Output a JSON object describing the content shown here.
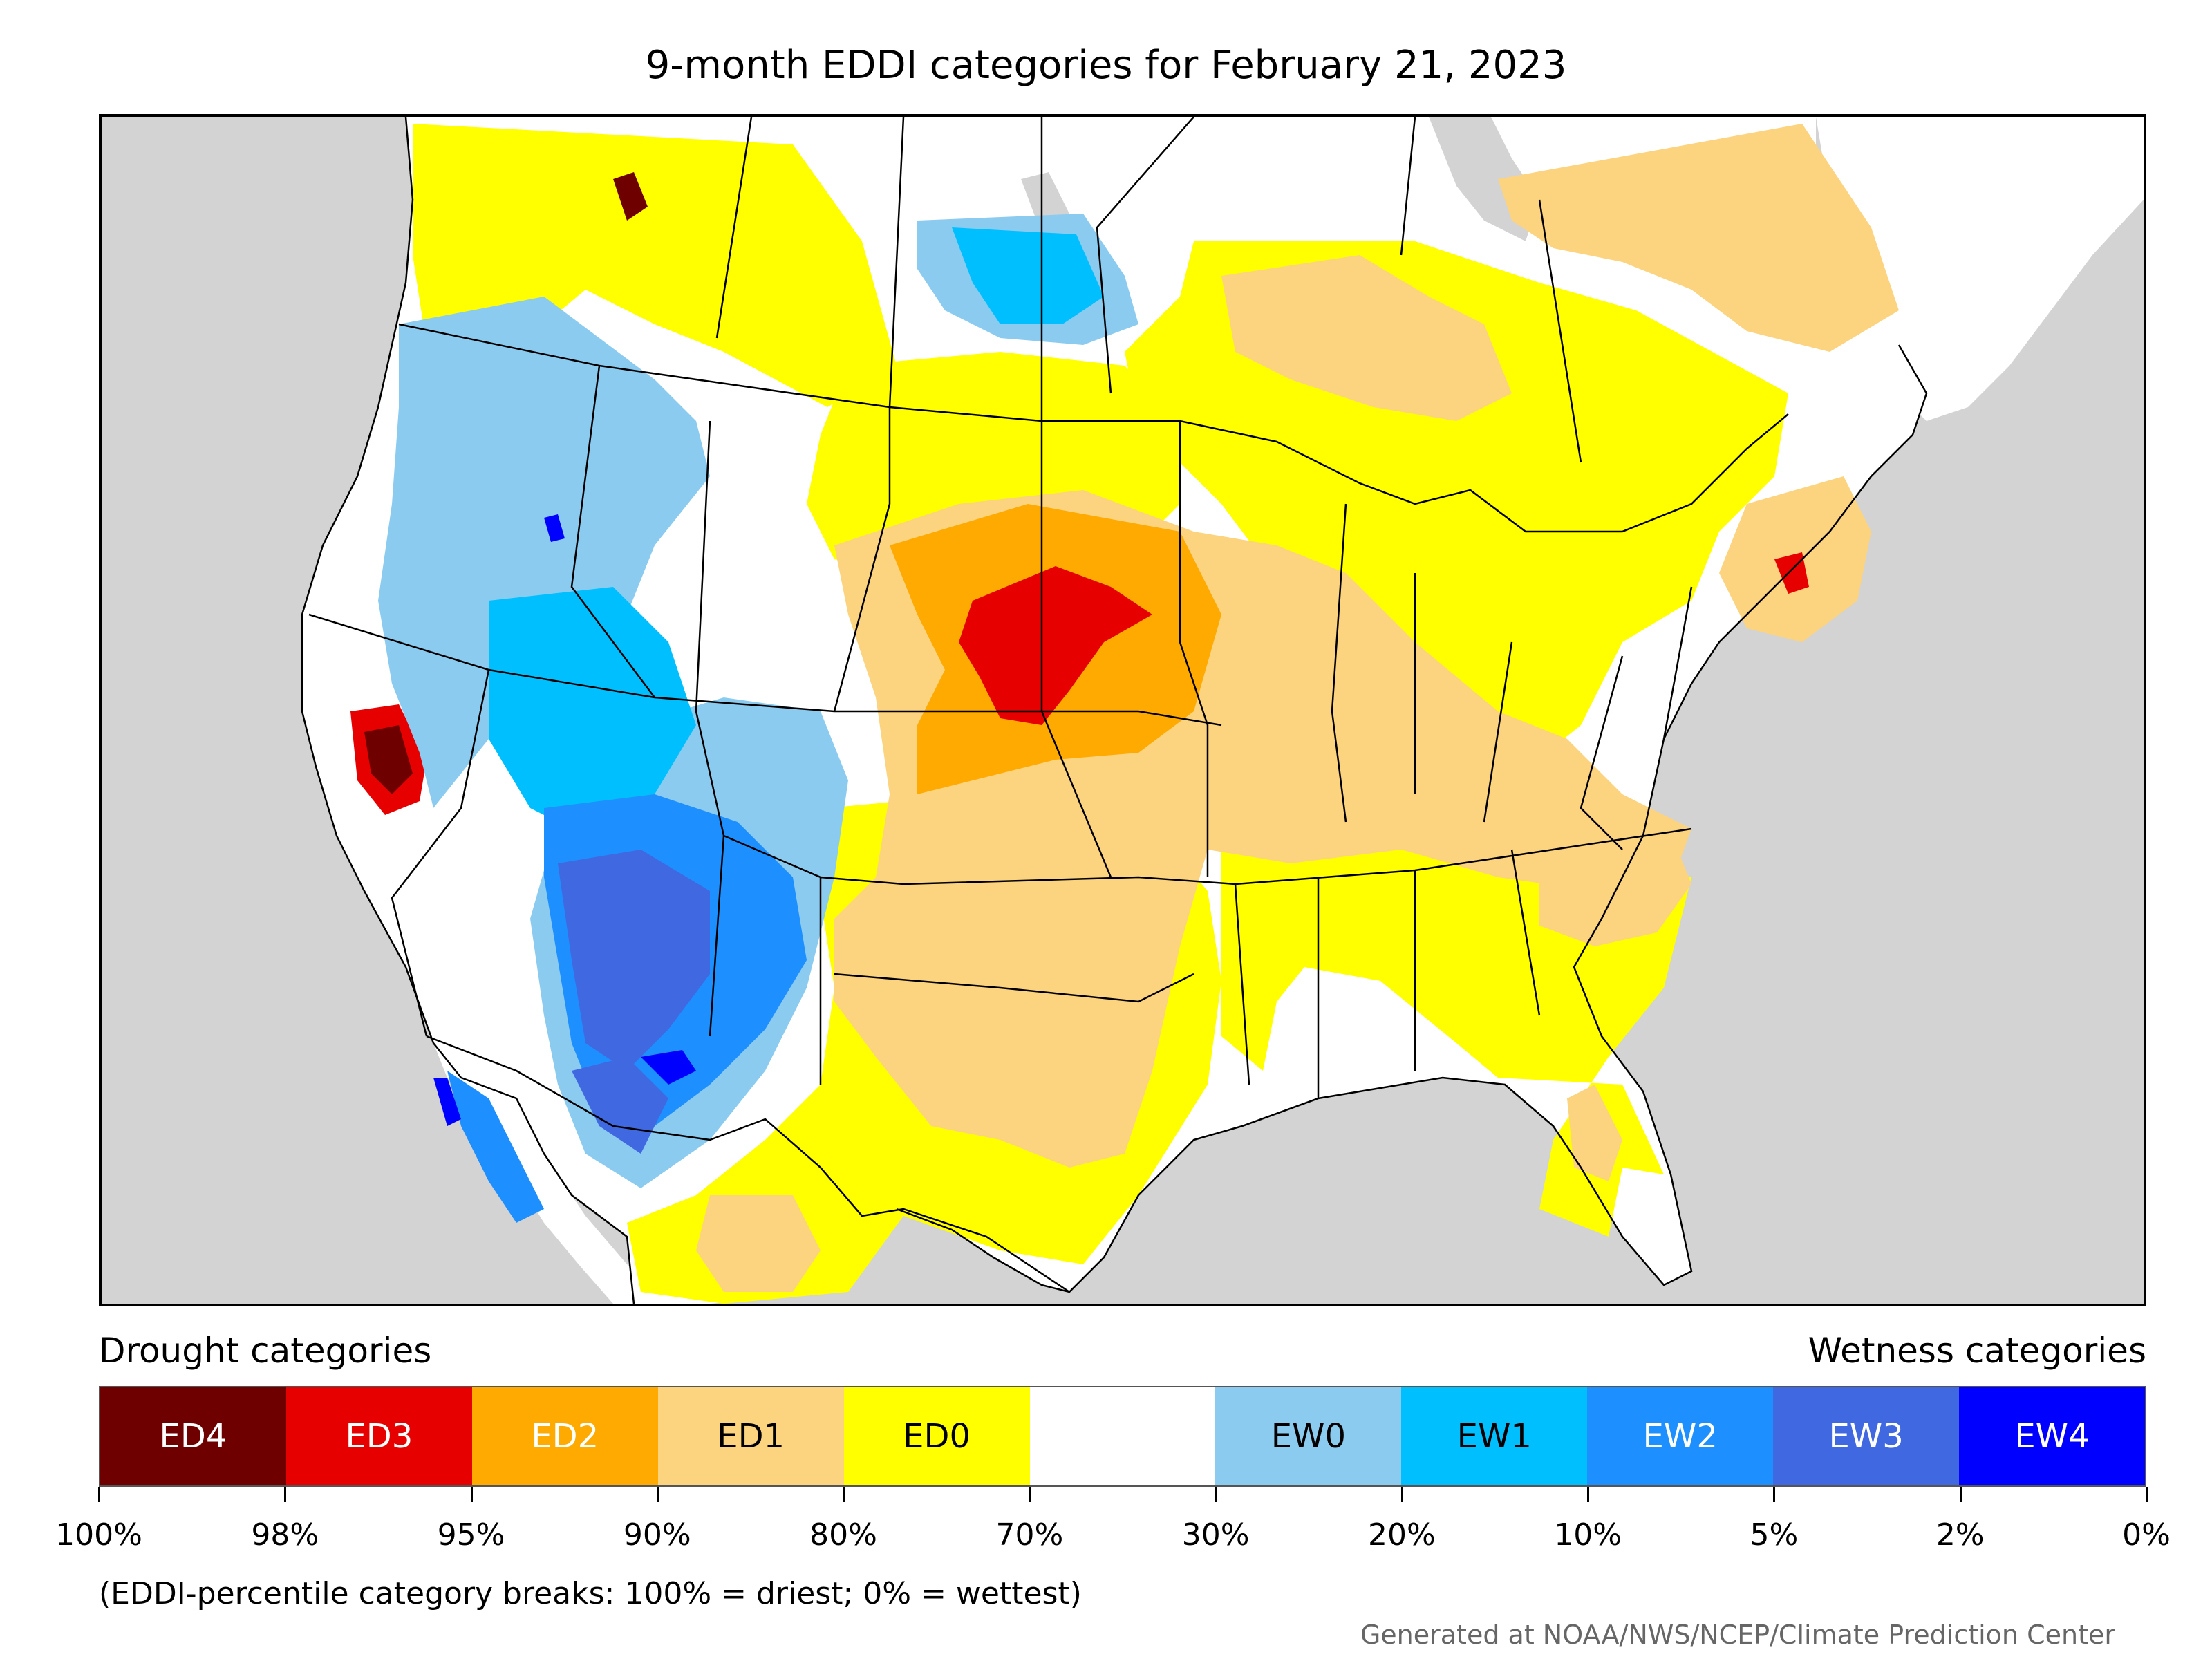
{
  "title": "9-month EDDI categories for February 21, 2023",
  "legend": {
    "drought_heading": "Drought categories",
    "wetness_heading": "Wetness categories",
    "categories": [
      {
        "label": "ED4",
        "color": "#6e0000",
        "text_color": "#ffffff"
      },
      {
        "label": "ED3",
        "color": "#e60000",
        "text_color": "#ffffff"
      },
      {
        "label": "ED2",
        "color": "#ffaa00",
        "text_color": "#ffffff"
      },
      {
        "label": "ED1",
        "color": "#fcd37f",
        "text_color": "#000000"
      },
      {
        "label": "ED0",
        "color": "#ffff00",
        "text_color": "#000000"
      },
      {
        "label": "",
        "color": "#ffffff",
        "text_color": "#000000"
      },
      {
        "label": "EW0",
        "color": "#8ccbf0",
        "text_color": "#000000"
      },
      {
        "label": "EW1",
        "color": "#00bfff",
        "text_color": "#000000"
      },
      {
        "label": "EW2",
        "color": "#1e8fff",
        "text_color": "#ffffff"
      },
      {
        "label": "EW3",
        "color": "#4068e1",
        "text_color": "#ffffff"
      },
      {
        "label": "EW4",
        "color": "#0000ff",
        "text_color": "#ffffff"
      }
    ],
    "breaks": [
      "100%",
      "98%",
      "95%",
      "90%",
      "80%",
      "70%",
      "30%",
      "20%",
      "10%",
      "5%",
      "2%",
      "0%"
    ],
    "note": "(EDDI-percentile category breaks: 100% = driest; 0% = wettest)"
  },
  "credit": "Generated at NOAA/NWS/NCEP/Climate Prediction Center",
  "map": {
    "background_color": "#d3d3d3",
    "land_color": "#ffffff",
    "boundary_color": "#000000"
  }
}
